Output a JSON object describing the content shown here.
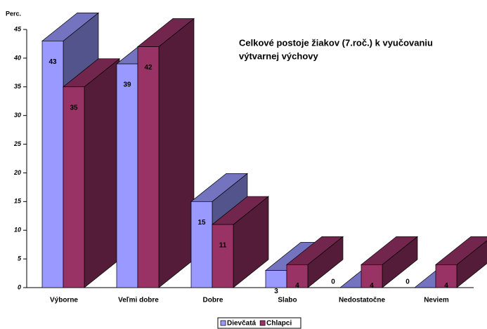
{
  "chart_data": {
    "type": "bar3d",
    "title": [
      "Celkové postoje žiakov (7.roč.) k vyučovaniu",
      "výtvarnej výchovy"
    ],
    "y_label": "Perc.",
    "categories": [
      "Výborne",
      "Veľmi dobre",
      "Dobre",
      "Slabo",
      "Nedostatočne",
      "Neviem"
    ],
    "series": [
      {
        "name": "Dievčatá",
        "color": "#9999ff",
        "values": [
          43,
          39,
          15,
          3,
          0,
          0
        ]
      },
      {
        "name": "Chlapci",
        "color": "#993366",
        "values": [
          35,
          42,
          11,
          4,
          4,
          4
        ]
      }
    ],
    "ylim": [
      0,
      45
    ],
    "yticks": [
      0,
      5,
      10,
      15,
      20,
      25,
      30,
      35,
      40,
      45
    ],
    "legend": "bottom"
  }
}
